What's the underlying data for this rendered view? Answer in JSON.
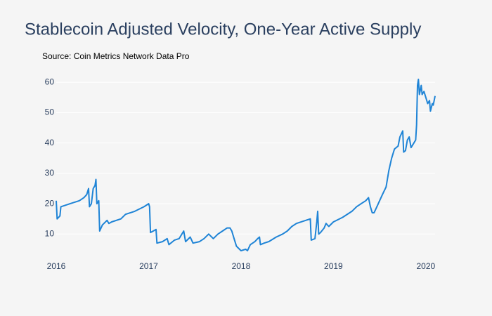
{
  "chart_data": {
    "type": "line",
    "title": "Stablecoin Adjusted Velocity, One-Year Active Supply",
    "subtitle": "Source: Coin Metrics Network Data Pro",
    "series": [
      {
        "name": "Adjusted Velocity",
        "color": "#1f84d6",
        "x": [
          2016.0,
          2016.01,
          2016.04,
          2016.05,
          2016.15,
          2016.25,
          2016.3,
          2016.33,
          2016.35,
          2016.36,
          2016.38,
          2016.4,
          2016.42,
          2016.43,
          2016.44,
          2016.46,
          2016.47,
          2016.5,
          2016.55,
          2016.57,
          2016.6,
          2016.7,
          2016.75,
          2016.85,
          2016.95,
          2017.0,
          2017.01,
          2017.02,
          2017.05,
          2017.08,
          2017.09,
          2017.15,
          2017.2,
          2017.22,
          2017.28,
          2017.33,
          2017.38,
          2017.4,
          2017.45,
          2017.48,
          2017.55,
          2017.6,
          2017.65,
          2017.7,
          2017.75,
          2017.8,
          2017.85,
          2017.88,
          2017.9,
          2017.93,
          2017.95,
          2018.0,
          2018.05,
          2018.07,
          2018.1,
          2018.15,
          2018.18,
          2018.2,
          2018.21,
          2018.25,
          2018.3,
          2018.38,
          2018.45,
          2018.5,
          2018.55,
          2018.6,
          2018.7,
          2018.75,
          2018.76,
          2018.8,
          2018.82,
          2018.83,
          2018.84,
          2018.86,
          2018.9,
          2018.92,
          2018.95,
          2019.0,
          2019.1,
          2019.2,
          2019.25,
          2019.3,
          2019.35,
          2019.38,
          2019.4,
          2019.42,
          2019.44,
          2019.47,
          2019.5,
          2019.53,
          2019.57,
          2019.6,
          2019.63,
          2019.66,
          2019.7,
          2019.72,
          2019.75,
          2019.76,
          2019.78,
          2019.8,
          2019.82,
          2019.84,
          2019.87,
          2019.89,
          2019.9,
          2019.91,
          2019.92,
          2019.93,
          2019.95,
          2019.96,
          2019.98,
          2020.0,
          2020.02,
          2020.04,
          2020.05,
          2020.07,
          2020.08,
          2020.1
        ],
        "values": [
          21,
          15,
          16,
          19,
          20,
          21,
          22,
          23,
          25,
          19,
          20,
          25,
          26,
          28,
          20,
          21,
          11,
          13,
          14.5,
          13.5,
          14,
          15,
          16.5,
          17.5,
          19,
          20,
          19,
          10.5,
          11,
          11.5,
          7,
          7.5,
          8.5,
          6.5,
          8,
          8.5,
          11,
          7.5,
          9,
          7,
          7.5,
          8.5,
          10,
          8.5,
          10,
          11,
          12,
          12,
          11,
          8,
          6,
          4.5,
          5,
          4.5,
          6.5,
          7.5,
          8.5,
          9,
          6.5,
          7,
          7.5,
          9,
          10,
          11,
          12.5,
          13.5,
          14.5,
          15,
          8,
          8.5,
          14,
          17.5,
          10,
          10.5,
          12,
          13.5,
          12.5,
          14,
          15.5,
          17.5,
          19,
          20,
          21,
          22,
          19,
          17,
          17,
          19,
          21,
          23,
          25.5,
          31,
          35,
          38,
          39,
          42,
          44,
          37,
          37.5,
          41,
          42,
          38.5,
          40,
          41,
          46,
          59,
          61,
          56,
          59,
          56,
          57,
          55,
          53,
          54,
          50.5,
          53,
          52.5,
          55.5
        ]
      }
    ],
    "xlim": [
      2016,
      2020.1
    ],
    "xticks": [
      2016,
      2017,
      2018,
      2019,
      2020
    ],
    "ylim": [
      1.5,
      64
    ],
    "yticks": [
      10,
      20,
      30,
      40,
      50,
      60
    ],
    "grid": true
  }
}
